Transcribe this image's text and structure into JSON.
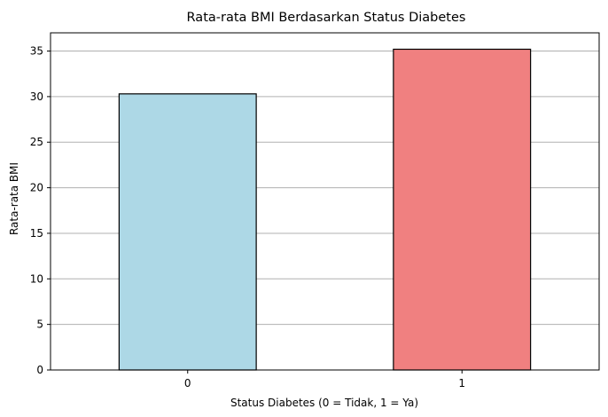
{
  "chart_data": {
    "type": "bar",
    "title": "Rata-rata BMI Berdasarkan Status Diabetes",
    "xlabel": "Status Diabetes (0 = Tidak, 1 = Ya)",
    "ylabel": "Rata-rata BMI",
    "categories": [
      "0",
      "1"
    ],
    "values": [
      30.3,
      35.2
    ],
    "colors": [
      "#add8e6",
      "#f08080"
    ],
    "edge_color": "#000000",
    "ylim": [
      0,
      37
    ],
    "yticks": [
      0,
      5,
      10,
      15,
      20,
      25,
      30,
      35
    ],
    "grid": "y-axis only",
    "grid_color": "#b0b0b0"
  }
}
